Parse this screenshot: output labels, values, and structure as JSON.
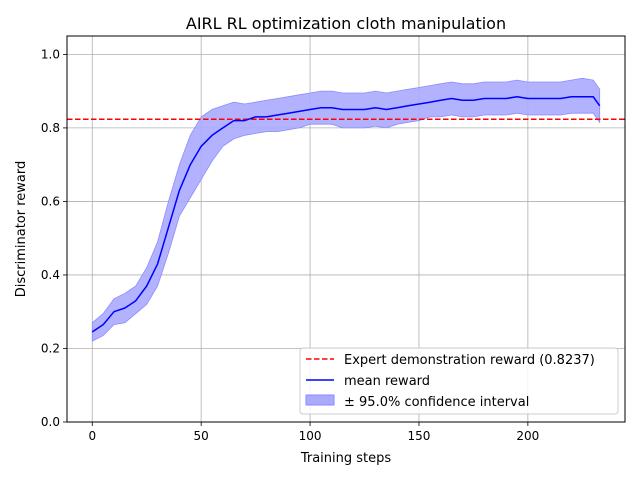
{
  "chart_data": {
    "type": "line",
    "title": "AIRL RL optimization cloth manipulation",
    "xlabel": "Training steps",
    "ylabel": "Discriminator reward",
    "xlim": [
      -11.6,
      244.6
    ],
    "ylim": [
      0.0,
      1.05
    ],
    "xticks": [
      0,
      50,
      100,
      150,
      200
    ],
    "yticks": [
      0.0,
      0.2,
      0.4,
      0.6,
      0.8,
      1.0
    ],
    "xtick_labels": [
      "0",
      "50",
      "100",
      "150",
      "200"
    ],
    "ytick_labels": [
      "0.0",
      "0.2",
      "0.4",
      "0.6",
      "0.8",
      "1.0"
    ],
    "grid": true,
    "legend_position": "lower-right",
    "legend": [
      "Expert demonstration reward (0.8237)",
      "mean reward",
      "± 95.0% confidence interval"
    ],
    "expert_reward": 0.8237,
    "colors": {
      "mean": "#0000ff",
      "band_fill": "#aaaaff",
      "band_edge": "#8c8cff",
      "expert": "#ff0000",
      "grid": "#b0b0b0"
    },
    "series": [
      {
        "name": "mean reward",
        "x": [
          0,
          5,
          10,
          15,
          20,
          25,
          30,
          35,
          40,
          45,
          50,
          55,
          60,
          65,
          70,
          75,
          80,
          85,
          90,
          95,
          100,
          105,
          110,
          115,
          120,
          125,
          130,
          135,
          140,
          145,
          150,
          155,
          160,
          165,
          170,
          175,
          180,
          185,
          190,
          195,
          200,
          205,
          210,
          215,
          220,
          225,
          230,
          233
        ],
        "y": [
          0.245,
          0.265,
          0.3,
          0.31,
          0.33,
          0.37,
          0.43,
          0.53,
          0.63,
          0.7,
          0.75,
          0.78,
          0.8,
          0.82,
          0.82,
          0.83,
          0.83,
          0.835,
          0.84,
          0.845,
          0.85,
          0.855,
          0.855,
          0.85,
          0.85,
          0.85,
          0.855,
          0.85,
          0.855,
          0.86,
          0.865,
          0.87,
          0.875,
          0.88,
          0.875,
          0.875,
          0.88,
          0.88,
          0.88,
          0.885,
          0.88,
          0.88,
          0.88,
          0.88,
          0.885,
          0.885,
          0.885,
          0.86
        ],
        "lower": [
          0.22,
          0.235,
          0.265,
          0.27,
          0.295,
          0.32,
          0.37,
          0.46,
          0.56,
          0.61,
          0.66,
          0.71,
          0.75,
          0.77,
          0.78,
          0.785,
          0.79,
          0.79,
          0.795,
          0.8,
          0.81,
          0.81,
          0.81,
          0.8,
          0.8,
          0.8,
          0.805,
          0.8,
          0.81,
          0.815,
          0.82,
          0.83,
          0.83,
          0.835,
          0.83,
          0.83,
          0.835,
          0.835,
          0.835,
          0.84,
          0.835,
          0.835,
          0.835,
          0.835,
          0.84,
          0.84,
          0.84,
          0.815
        ],
        "upper": [
          0.27,
          0.295,
          0.335,
          0.35,
          0.37,
          0.42,
          0.49,
          0.6,
          0.7,
          0.78,
          0.83,
          0.85,
          0.86,
          0.87,
          0.865,
          0.87,
          0.875,
          0.88,
          0.885,
          0.89,
          0.895,
          0.9,
          0.9,
          0.895,
          0.895,
          0.895,
          0.9,
          0.895,
          0.9,
          0.905,
          0.91,
          0.915,
          0.92,
          0.925,
          0.92,
          0.92,
          0.925,
          0.925,
          0.925,
          0.93,
          0.925,
          0.925,
          0.925,
          0.925,
          0.93,
          0.935,
          0.93,
          0.905
        ]
      }
    ]
  }
}
